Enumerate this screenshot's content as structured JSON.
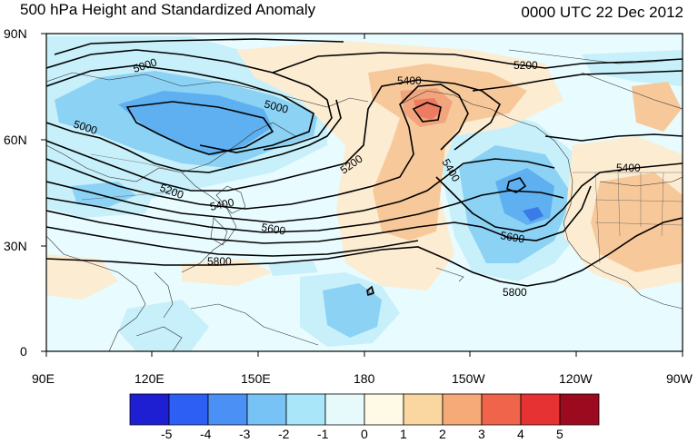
{
  "title": "500 hPa Height and Standardized Anomaly",
  "valid_time": "0000 UTC 22 Dec 2012",
  "lat_labels": [
    "90N",
    "60N",
    "30N",
    "0"
  ],
  "lon_labels": [
    "90E",
    "120E",
    "150E",
    "180",
    "150W",
    "120W",
    "90W"
  ],
  "contour_labels": {
    "h5000a": "5000",
    "h5000b": "5000",
    "h5000c": "5000",
    "h5200a": "5200",
    "h5200b": "5200",
    "h5200c": "5200",
    "h5400a": "5400",
    "h5400b": "5400",
    "h5400c": "5400",
    "h5400d": "5400",
    "h5600a": "5600",
    "h5600b": "5600",
    "h5800a": "5800",
    "h5800b": "5800"
  },
  "colorbar": {
    "labels": [
      "-5",
      "-4",
      "-3",
      "-2",
      "-1",
      "0",
      "1",
      "2",
      "3",
      "4",
      "5"
    ],
    "colors": [
      "#1e1ed2",
      "#2d5ff5",
      "#4b91f5",
      "#78c3f5",
      "#aae6fa",
      "#e6fafc",
      "#fffae6",
      "#fad7a0",
      "#f5aa78",
      "#f0644b",
      "#e63232",
      "#9b0a1e"
    ]
  },
  "anomaly_colors": {
    "neg1": "#c8f0fa",
    "neg2": "#8cd2f5",
    "neg3": "#5fb0f0",
    "neg4": "#3a7be8",
    "pos1": "#fcecd2",
    "pos2": "#f7c99a",
    "pos3": "#f2a47d",
    "pos4": "#ec7b62",
    "zero": "#e8fbfe"
  }
}
